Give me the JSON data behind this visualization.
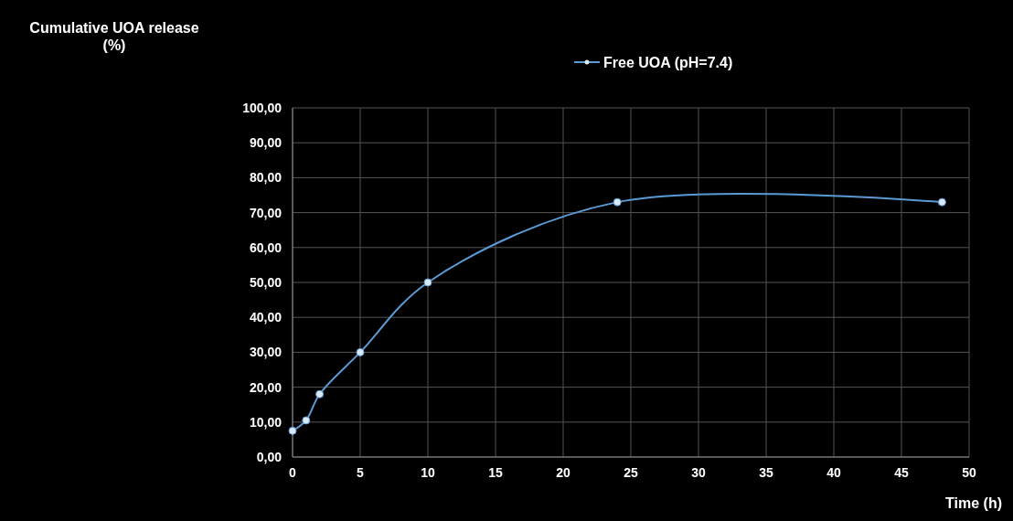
{
  "chart_data": {
    "type": "line",
    "ylabel": "Cumulative UOA release (%)",
    "xlabel": "Time (h)",
    "x": [
      0,
      1,
      2,
      5,
      10,
      24,
      48
    ],
    "series": [
      {
        "name": "Free UOA (pH=7.4)",
        "color": "#5b9bd5",
        "values": [
          7.5,
          10.5,
          18,
          30,
          50,
          73,
          73
        ]
      }
    ],
    "xlim": [
      0,
      50
    ],
    "xticks": [
      0,
      5,
      10,
      15,
      20,
      25,
      30,
      35,
      40,
      45,
      50
    ],
    "ylim": [
      0,
      100
    ],
    "yticks": [
      {
        "value": 0,
        "label": "0,00"
      },
      {
        "value": 10,
        "label": "10,00"
      },
      {
        "value": 20,
        "label": "20,00"
      },
      {
        "value": 30,
        "label": "30,00"
      },
      {
        "value": 40,
        "label": "40,00"
      },
      {
        "value": 50,
        "label": "50,00"
      },
      {
        "value": 60,
        "label": "60,00"
      },
      {
        "value": 70,
        "label": "70,00"
      },
      {
        "value": 80,
        "label": "80,00"
      },
      {
        "value": 90,
        "label": "90,00"
      },
      {
        "value": 100,
        "label": "100,00"
      }
    ],
    "grid": true,
    "legend": "top",
    "marker": "circle",
    "line_style": "solid"
  }
}
